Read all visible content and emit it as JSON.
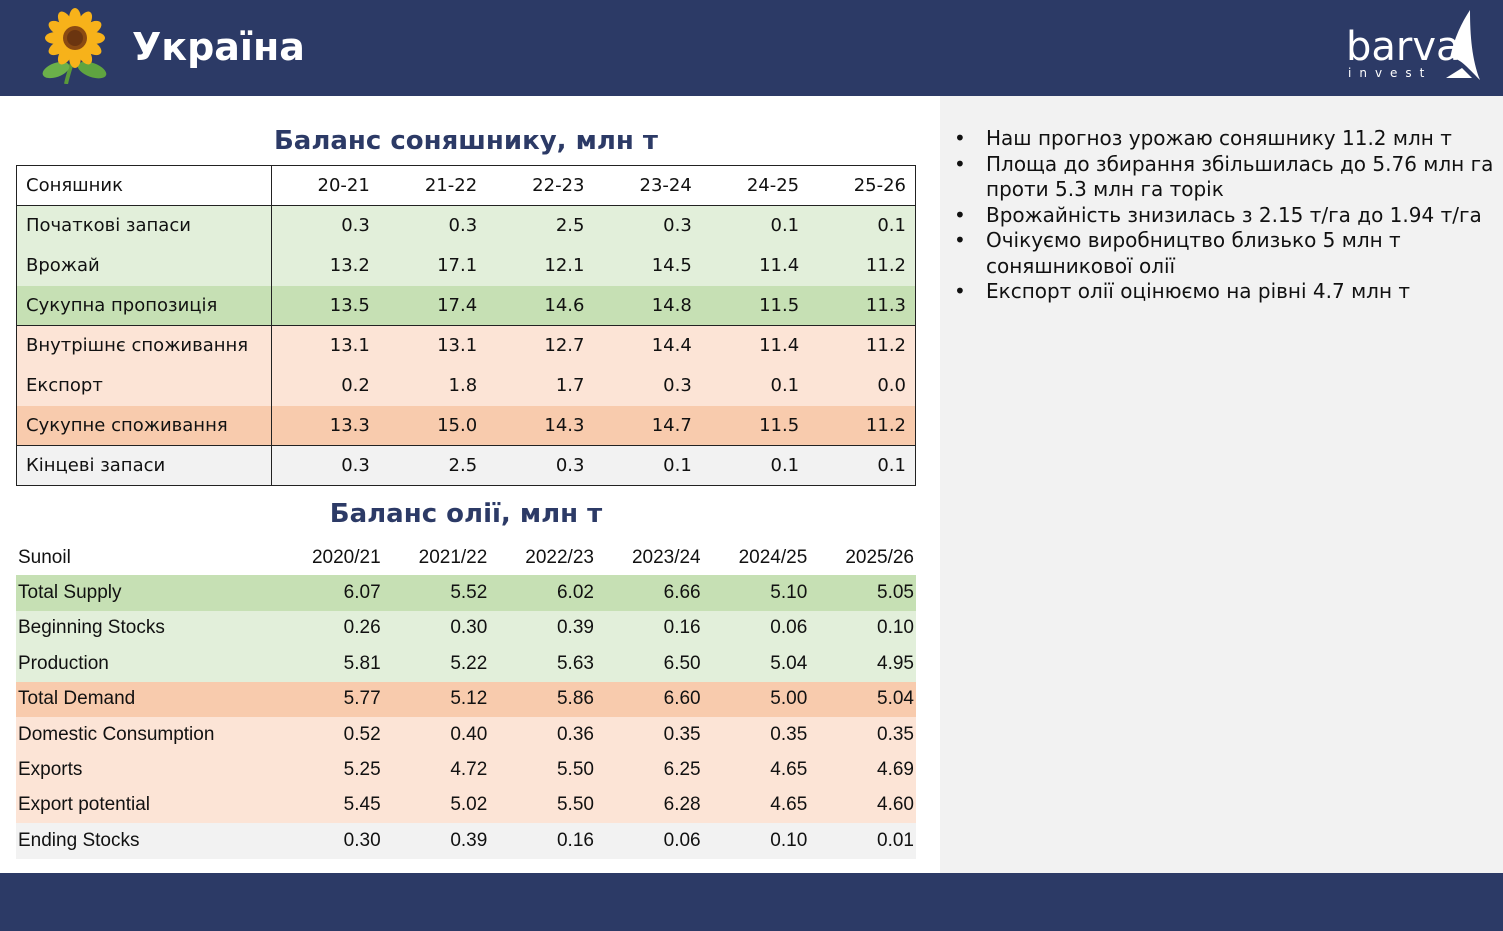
{
  "header": {
    "title": "Україна",
    "logo_word": "barva",
    "logo_sub": "invest"
  },
  "colors": {
    "navy": "#2c3a66",
    "green_dark": "#c6e0b4",
    "green_light": "#e2efda",
    "orange_dark": "#f8cbad",
    "orange_light": "#fce4d6",
    "grey": "#f2f2f2"
  },
  "bullets": [
    "Наш прогноз урожаю соняшнику 11.2 млн т",
    "Площа до збирання збільшилась до 5.76 млн га проти 5.3 млн га торік",
    "Врожайність знизилась з 2.15 т/га до 1.94 т/га",
    "Очікуємо виробництво близько 5 млн т соняшникової олії",
    "Експорт олії оцінюємо на рівні 4.7 млн т"
  ],
  "sunflower_table": {
    "title": "Баланс соняшнику, млн т",
    "corner": "Соняшник",
    "columns": [
      "20-21",
      "21-22",
      "22-23",
      "23-24",
      "24-25",
      "25-26"
    ],
    "rows": [
      {
        "label": "Початкові запаси",
        "values": [
          "0.3",
          "0.3",
          "2.5",
          "0.3",
          "0.1",
          "0.1"
        ]
      },
      {
        "label": "Врожай",
        "values": [
          "13.2",
          "17.1",
          "12.1",
          "14.5",
          "11.4",
          "11.2"
        ]
      },
      {
        "label": "Сукупна пропозиція",
        "values": [
          "13.5",
          "17.4",
          "14.6",
          "14.8",
          "11.5",
          "11.3"
        ]
      },
      {
        "label": "Внутрішнє споживання",
        "values": [
          "13.1",
          "13.1",
          "12.7",
          "14.4",
          "11.4",
          "11.2"
        ]
      },
      {
        "label": "Експорт",
        "values": [
          "0.2",
          "1.8",
          "1.7",
          "0.3",
          "0.1",
          "0.0"
        ]
      },
      {
        "label": "Сукупне споживання",
        "values": [
          "13.3",
          "15.0",
          "14.3",
          "14.7",
          "11.5",
          "11.2"
        ]
      },
      {
        "label": "Кінцеві запаси",
        "values": [
          "0.3",
          "2.5",
          "0.3",
          "0.1",
          "0.1",
          "0.1"
        ]
      }
    ]
  },
  "oil_table": {
    "title": "Баланс олії, млн т",
    "corner": "Sunoil",
    "columns": [
      "2020/21",
      "2021/22",
      "2022/23",
      "2023/24",
      "2024/25",
      "2025/26"
    ],
    "rows": [
      {
        "label": "Total Supply",
        "values": [
          "6.07",
          "5.52",
          "6.02",
          "6.66",
          "5.10",
          "5.05"
        ]
      },
      {
        "label": "Beginning Stocks",
        "values": [
          "0.26",
          "0.30",
          "0.39",
          "0.16",
          "0.06",
          "0.10"
        ]
      },
      {
        "label": "Production",
        "values": [
          "5.81",
          "5.22",
          "5.63",
          "6.50",
          "5.04",
          "4.95"
        ]
      },
      {
        "label": "Total Demand",
        "values": [
          "5.77",
          "5.12",
          "5.86",
          "6.60",
          "5.00",
          "5.04"
        ]
      },
      {
        "label": "Domestic Consumption",
        "values": [
          "0.52",
          "0.40",
          "0.36",
          "0.35",
          "0.35",
          "0.35"
        ]
      },
      {
        "label": "Exports",
        "values": [
          "5.25",
          "4.72",
          "5.50",
          "6.25",
          "4.65",
          "4.69"
        ]
      },
      {
        "label": "Export potential",
        "values": [
          "5.45",
          "5.02",
          "5.50",
          "6.28",
          "4.65",
          "4.60"
        ]
      },
      {
        "label": "Ending Stocks",
        "values": [
          "0.30",
          "0.39",
          "0.16",
          "0.06",
          "0.10",
          "0.01"
        ]
      }
    ]
  }
}
